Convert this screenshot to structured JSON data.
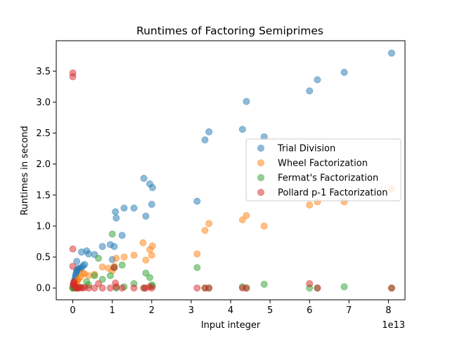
{
  "chart_data": {
    "type": "scatter",
    "title": "Runtimes of Factoring Semiprimes",
    "xlabel": "Input integer",
    "ylabel": "Runtimes in second",
    "x_offset_label": "1e13",
    "xlim": [
      -0.42,
      8.42
    ],
    "ylim": [
      -0.19,
      3.99
    ],
    "x_scale_note": "x values in units of 1e13",
    "xticks": [
      0,
      1,
      2,
      3,
      4,
      5,
      6,
      7,
      8
    ],
    "xtick_labels": [
      "0",
      "1",
      "2",
      "3",
      "4",
      "5",
      "6",
      "7",
      "8"
    ],
    "yticks": [
      0.0,
      0.5,
      1.0,
      1.5,
      2.0,
      2.5,
      3.0,
      3.5
    ],
    "ytick_labels": [
      "0.0",
      "0.5",
      "1.0",
      "1.5",
      "2.0",
      "2.5",
      "3.0",
      "3.5"
    ],
    "legend_position": "center-right",
    "series": [
      {
        "name": "Trial Division",
        "color": "#1f77b4",
        "x": [
          0.0,
          0.01,
          0.02,
          0.03,
          0.04,
          0.05,
          0.06,
          0.07,
          0.08,
          0.09,
          0.1,
          0.12,
          0.15,
          0.18,
          0.22,
          0.26,
          0.3,
          0.1,
          0.22,
          0.35,
          0.4,
          0.55,
          0.75,
          0.95,
          1.0,
          1.05,
          1.08,
          1.1,
          1.25,
          1.3,
          1.55,
          1.8,
          1.85,
          1.95,
          2.0,
          2.02,
          3.15,
          3.35,
          3.45,
          4.3,
          4.4,
          4.85,
          6.0,
          6.2,
          6.88,
          8.08
        ],
        "y": [
          0.0,
          0.02,
          0.05,
          0.08,
          0.1,
          0.13,
          0.16,
          0.2,
          0.22,
          0.25,
          0.28,
          0.3,
          0.32,
          0.3,
          0.33,
          0.36,
          0.38,
          0.43,
          0.58,
          0.6,
          0.55,
          0.54,
          0.67,
          0.7,
          0.46,
          0.67,
          1.23,
          1.13,
          0.85,
          1.29,
          1.29,
          1.77,
          1.16,
          1.68,
          1.35,
          1.62,
          1.4,
          2.39,
          2.52,
          2.56,
          3.01,
          2.44,
          3.18,
          3.36,
          3.48,
          3.79
        ]
      },
      {
        "name": "Wheel Factorization",
        "color": "#ff7f0e",
        "x": [
          0.0,
          0.02,
          0.04,
          0.06,
          0.08,
          0.1,
          0.12,
          0.15,
          0.2,
          0.25,
          0.3,
          0.4,
          0.55,
          0.75,
          0.9,
          1.0,
          1.05,
          1.1,
          1.3,
          1.55,
          1.78,
          1.85,
          1.95,
          2.0,
          2.02,
          3.15,
          3.35,
          3.45,
          4.3,
          4.4,
          4.85,
          6.0,
          6.2,
          6.88,
          8.08
        ],
        "y": [
          0.0,
          0.02,
          0.04,
          0.06,
          0.08,
          0.1,
          0.12,
          0.15,
          0.18,
          0.24,
          0.23,
          0.2,
          0.22,
          0.34,
          0.32,
          0.28,
          0.35,
          0.48,
          0.5,
          0.53,
          0.73,
          0.45,
          0.62,
          0.53,
          0.68,
          0.55,
          0.93,
          1.04,
          1.1,
          1.17,
          1.0,
          1.34,
          1.39,
          1.39,
          1.6
        ]
      },
      {
        "name": "Fermat's Factorization",
        "color": "#2ca02c",
        "x": [
          0.0,
          0.02,
          0.05,
          0.1,
          0.2,
          0.35,
          0.4,
          0.55,
          0.65,
          0.75,
          0.95,
          1.0,
          1.05,
          1.1,
          1.25,
          1.3,
          1.55,
          1.8,
          1.85,
          1.95,
          2.0,
          2.02,
          3.15,
          3.35,
          3.45,
          4.3,
          4.4,
          4.85,
          6.0,
          6.2,
          6.88,
          8.08
        ],
        "y": [
          0.0,
          0.01,
          0.0,
          0.0,
          0.01,
          0.1,
          0.05,
          0.2,
          0.48,
          0.14,
          0.2,
          0.87,
          0.33,
          0.0,
          0.37,
          0.02,
          0.07,
          0.0,
          0.24,
          0.17,
          0.05,
          0.03,
          0.33,
          0.0,
          0.0,
          0.02,
          0.0,
          0.06,
          0.0,
          0.0,
          0.02,
          0.0
        ]
      },
      {
        "name": "Pollard p-1 Factorization",
        "color": "#d62728",
        "x": [
          0.0,
          0.0,
          0.0,
          0.0,
          0.01,
          0.02,
          0.03,
          0.05,
          0.07,
          0.1,
          0.12,
          0.15,
          0.2,
          0.25,
          0.3,
          0.4,
          0.55,
          0.65,
          0.75,
          0.95,
          1.05,
          1.08,
          1.1,
          1.25,
          1.55,
          1.8,
          1.85,
          1.95,
          2.0,
          3.15,
          3.35,
          3.45,
          4.3,
          4.4,
          6.0,
          6.2,
          8.08
        ],
        "y": [
          3.47,
          3.41,
          0.63,
          0.35,
          0.05,
          0.08,
          0.1,
          0.03,
          0.01,
          0.0,
          0.0,
          0.0,
          0.01,
          0.0,
          0.01,
          0.0,
          0.0,
          0.07,
          0.0,
          0.0,
          0.33,
          0.08,
          0.02,
          0.0,
          0.0,
          0.0,
          0.0,
          0.02,
          0.0,
          0.0,
          0.0,
          0.0,
          0.0,
          0.0,
          0.07,
          0.0,
          0.0
        ]
      }
    ]
  }
}
